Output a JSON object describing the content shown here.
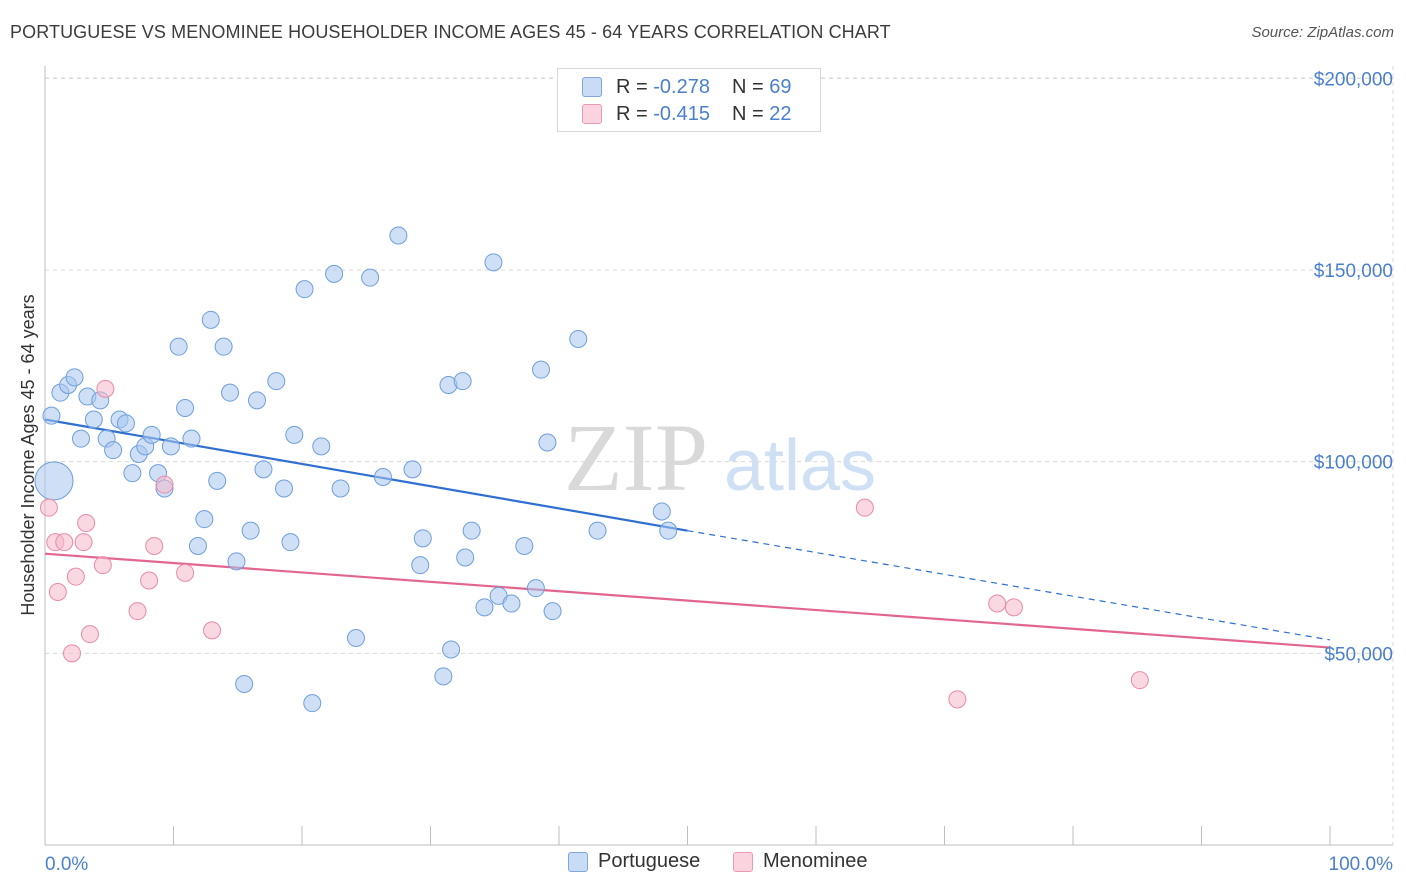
{
  "title": "PORTUGUESE VS MENOMINEE HOUSEHOLDER INCOME AGES 45 - 64 YEARS CORRELATION CHART",
  "source": "Source: ZipAtlas.com",
  "watermark": {
    "zip": "ZIP",
    "atlas": "atlas"
  },
  "legend_stats": [
    {
      "r_label": "R =",
      "r_value": "-0.278",
      "n_label": "N =",
      "n_value": "69",
      "color": "#a7c6ee"
    },
    {
      "r_label": "R =",
      "r_value": "-0.415",
      "n_label": "N =",
      "n_value": "22",
      "color": "#f5b8ca"
    }
  ],
  "chart_data": {
    "type": "scatter",
    "title": "PORTUGUESE VS MENOMINEE HOUSEHOLDER INCOME AGES 45 - 64 YEARS CORRELATION CHART",
    "xlabel": "",
    "ylabel": "Householder Income Ages 45 - 64 years",
    "xlim": [
      0,
      100
    ],
    "ylim": [
      0,
      210000
    ],
    "x_tick_labels": [
      "0.0%",
      "100.0%"
    ],
    "y_ticks": [
      50000,
      100000,
      150000,
      200000
    ],
    "y_tick_labels": [
      "$50,000",
      "$100,000",
      "$150,000",
      "$200,000"
    ],
    "grid": true,
    "legend_position": "bottom",
    "series": [
      {
        "name": "Portuguese",
        "color": "#a7c6ee",
        "edge": "#6f9fdc",
        "trend": {
          "x0": 0,
          "y0": 111000,
          "x1": 50,
          "y1": 82000,
          "dashed_to_x": 100,
          "dashed_to_y": 53500,
          "color": "#2f6fd1"
        },
        "points": [
          [
            0.5,
            112000
          ],
          [
            0.7,
            95000
          ],
          [
            1.2,
            118000
          ],
          [
            1.8,
            120000
          ],
          [
            2.3,
            122000
          ],
          [
            2.8,
            106000
          ],
          [
            3.3,
            117000
          ],
          [
            3.8,
            111000
          ],
          [
            4.3,
            116000
          ],
          [
            4.8,
            106000
          ],
          [
            5.3,
            103000
          ],
          [
            5.8,
            111000
          ],
          [
            6.3,
            110000
          ],
          [
            6.8,
            97000
          ],
          [
            7.3,
            102000
          ],
          [
            7.8,
            104000
          ],
          [
            8.3,
            107000
          ],
          [
            8.8,
            97000
          ],
          [
            9.3,
            93000
          ],
          [
            9.8,
            104000
          ],
          [
            10.4,
            130000
          ],
          [
            10.9,
            114000
          ],
          [
            11.4,
            106000
          ],
          [
            11.9,
            78000
          ],
          [
            12.4,
            85000
          ],
          [
            12.9,
            137000
          ],
          [
            13.4,
            95000
          ],
          [
            13.9,
            130000
          ],
          [
            14.4,
            118000
          ],
          [
            14.9,
            74000
          ],
          [
            15.5,
            42000
          ],
          [
            16.0,
            82000
          ],
          [
            16.5,
            116000
          ],
          [
            17.0,
            98000
          ],
          [
            18.0,
            121000
          ],
          [
            18.6,
            93000
          ],
          [
            19.1,
            79000
          ],
          [
            19.4,
            107000
          ],
          [
            20.2,
            145000
          ],
          [
            20.8,
            37000
          ],
          [
            21.5,
            104000
          ],
          [
            22.5,
            149000
          ],
          [
            23.0,
            93000
          ],
          [
            24.2,
            54000
          ],
          [
            25.3,
            148000
          ],
          [
            26.3,
            96000
          ],
          [
            27.5,
            159000
          ],
          [
            28.6,
            98000
          ],
          [
            29.4,
            80000
          ],
          [
            29.2,
            73000
          ],
          [
            31.0,
            44000
          ],
          [
            31.6,
            51000
          ],
          [
            31.4,
            120000
          ],
          [
            32.5,
            121000
          ],
          [
            32.7,
            75000
          ],
          [
            33.2,
            82000
          ],
          [
            34.2,
            62000
          ],
          [
            34.9,
            152000
          ],
          [
            35.3,
            65000
          ],
          [
            36.3,
            63000
          ],
          [
            37.3,
            78000
          ],
          [
            38.2,
            67000
          ],
          [
            38.6,
            124000
          ],
          [
            39.1,
            105000
          ],
          [
            39.5,
            61000
          ],
          [
            41.5,
            132000
          ],
          [
            43.0,
            82000
          ],
          [
            48.0,
            87000
          ],
          [
            48.5,
            82000
          ]
        ]
      },
      {
        "name": "Menominee",
        "color": "#f5b8ca",
        "edge": "#e98aa7",
        "trend": {
          "x0": 0,
          "y0": 76000,
          "x1": 100,
          "y1": 51500,
          "color": "#e2668e"
        },
        "points": [
          [
            0.3,
            88000
          ],
          [
            0.8,
            79000
          ],
          [
            1.0,
            66000
          ],
          [
            1.5,
            79000
          ],
          [
            2.1,
            50000
          ],
          [
            2.4,
            70000
          ],
          [
            3.0,
            79000
          ],
          [
            3.2,
            84000
          ],
          [
            3.5,
            55000
          ],
          [
            4.5,
            73000
          ],
          [
            4.7,
            119000
          ],
          [
            7.2,
            61000
          ],
          [
            8.1,
            69000
          ],
          [
            8.5,
            78000
          ],
          [
            9.3,
            94000
          ],
          [
            10.9,
            71000
          ],
          [
            13.0,
            56000
          ],
          [
            63.8,
            88000
          ],
          [
            71.0,
            38000
          ],
          [
            74.1,
            63000
          ],
          [
            75.4,
            62000
          ],
          [
            85.2,
            43000
          ]
        ]
      }
    ]
  },
  "bottom_legend": [
    {
      "label": "Portuguese",
      "color": "#a7c6ee"
    },
    {
      "label": "Menominee",
      "color": "#f5b8ca"
    }
  ]
}
